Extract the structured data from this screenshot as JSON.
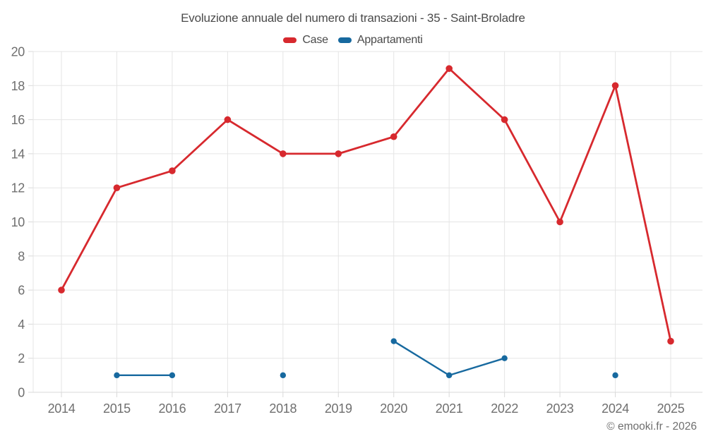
{
  "title": "Evoluzione annuale del numero di transazioni - 35 - Saint-Broladre",
  "legend": {
    "items": [
      {
        "label": "Case",
        "color": "#d7292e"
      },
      {
        "label": "Appartamenti",
        "color": "#17699f"
      }
    ]
  },
  "footer": {
    "credit": "© emooki.fr - 2026"
  },
  "colors": {
    "grid": "#e5e5e5",
    "axis": "#d9d9d9",
    "tick_text": "#6f6f6f",
    "title_text": "#4a4a4a"
  },
  "chart_data": {
    "type": "line",
    "title": "Evoluzione annuale del numero di transazioni - 35 - Saint-Broladre",
    "x": [
      2014,
      2015,
      2016,
      2017,
      2018,
      2019,
      2020,
      2021,
      2022,
      2023,
      2024,
      2025
    ],
    "series": [
      {
        "name": "Case",
        "color": "#d7292e",
        "marker_radius": 4.8,
        "line_width": 2.8,
        "values": [
          6,
          12,
          13,
          16,
          14,
          14,
          15,
          19,
          16,
          10,
          18,
          3
        ]
      },
      {
        "name": "Appartamenti",
        "color": "#17699f",
        "marker_radius": 4.2,
        "line_width": 2.4,
        "values": [
          null,
          1,
          1,
          null,
          1,
          null,
          3,
          1,
          2,
          null,
          1,
          null
        ]
      }
    ],
    "xlabel": "",
    "ylabel": "",
    "ylim": [
      0,
      20
    ],
    "ytick_step": 2,
    "grid": true,
    "legend_position": "top"
  }
}
